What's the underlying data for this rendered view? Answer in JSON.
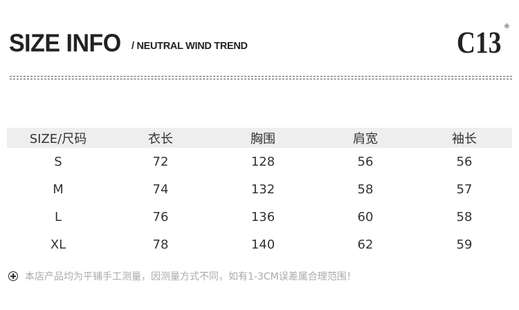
{
  "header": {
    "title": "SIZE INFO",
    "subtitle": "/ NEUTRAL WIND TREND",
    "logo": "C13",
    "logo_mark": "®"
  },
  "table": {
    "columns": [
      "SIZE/尺码",
      "衣长",
      "胸围",
      "肩宽",
      "袖长"
    ],
    "rows": [
      [
        "S",
        "72",
        "128",
        "56",
        "56"
      ],
      [
        "M",
        "74",
        "132",
        "58",
        "57"
      ],
      [
        "L",
        "76",
        "136",
        "60",
        "58"
      ],
      [
        "XL",
        "78",
        "140",
        "62",
        "59"
      ]
    ],
    "header_bg": "#eeeeee"
  },
  "note": {
    "icon": "plus-circle-icon",
    "text": "本店产品均为平铺手工测量，因测量方式不同，如有1-3CM误差属合理范围！"
  }
}
